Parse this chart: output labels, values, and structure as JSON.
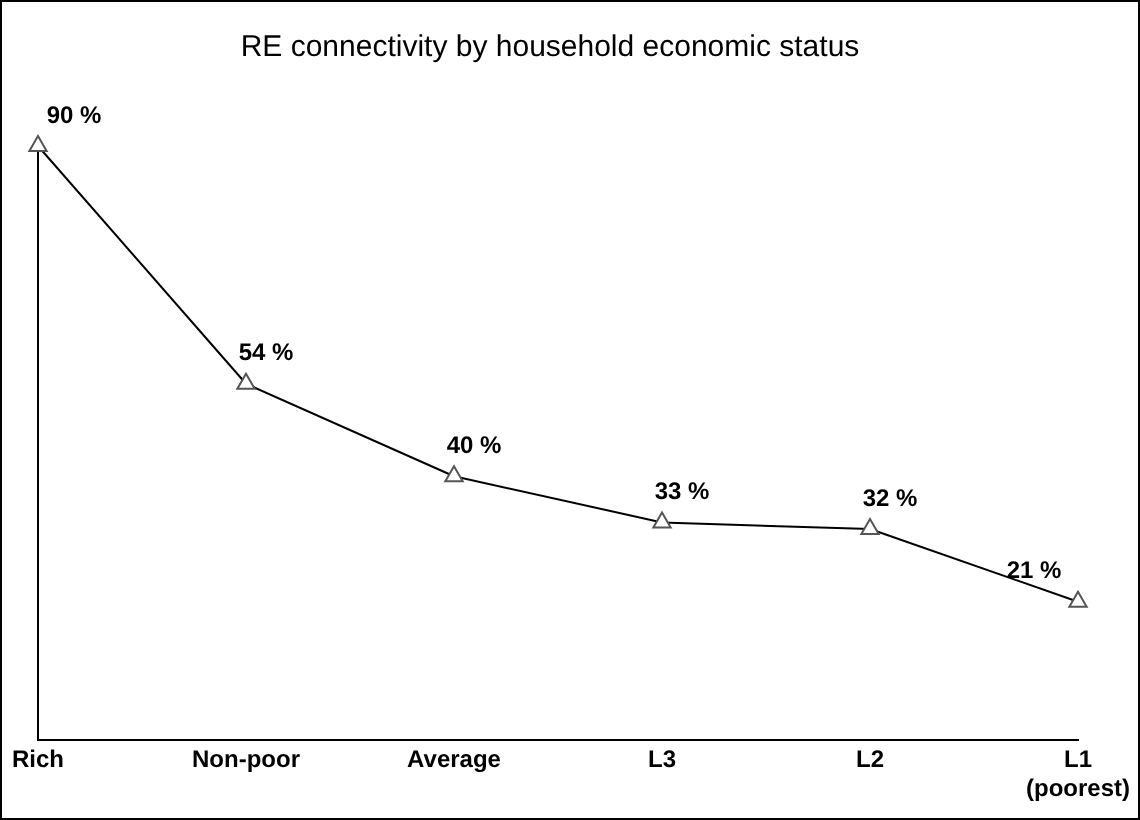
{
  "chart_data": {
    "type": "line",
    "title": "RE connectivity by household economic status",
    "categories": [
      "Rich",
      "Non-poor",
      "Average",
      "L3",
      "L2",
      "L1 (poorest)"
    ],
    "series": [
      {
        "color": "#000000",
        "values": [
          90,
          54,
          40,
          33,
          32,
          21
        ],
        "value_labels": [
          "90 %",
          "54 %",
          "40 %",
          "33 %",
          "32 %",
          "21 %"
        ]
      }
    ],
    "legend": false,
    "marker": "triangle",
    "line_style": "solid",
    "tick_labels": "x"
  }
}
